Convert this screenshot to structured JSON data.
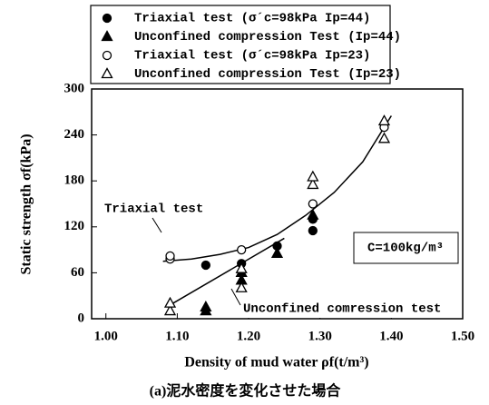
{
  "chart_data": {
    "type": "scatter",
    "xlabel": "Density of mud water ρf(t/m³)",
    "ylabel": "Static strength σf(kPa)",
    "caption": "(a)泥水密度を変化させた場合",
    "box_note": "C=100kg/m³",
    "xlim": [
      0.98,
      1.5
    ],
    "ylim": [
      0,
      300
    ],
    "xticks": [
      {
        "value": 1.0,
        "label": "1.00"
      },
      {
        "value": 1.1,
        "label": "1.10"
      },
      {
        "value": 1.2,
        "label": "1.20"
      },
      {
        "value": 1.3,
        "label": "1.30"
      },
      {
        "value": 1.4,
        "label": "1.40"
      },
      {
        "value": 1.5,
        "label": "1.50"
      }
    ],
    "yticks": [
      0,
      60,
      120,
      180,
      240,
      300
    ],
    "series": [
      {
        "name": "Triaxial test (σ´c=98kPa Ip=44)",
        "marker": "circle",
        "filled": true,
        "color": "#000000",
        "x": [
          1.14,
          1.19,
          1.24,
          1.29,
          1.29
        ],
        "values": [
          70,
          72,
          95,
          115,
          130
        ]
      },
      {
        "name": "Unconfined compression Test (Ip=44)",
        "marker": "triangle",
        "filled": true,
        "color": "#000000",
        "x": [
          1.14,
          1.14,
          1.19,
          1.19,
          1.24,
          1.29
        ],
        "values": [
          10,
          15,
          50,
          60,
          85,
          135
        ]
      },
      {
        "name": "Triaxial test (σ´c=98kPa Ip=23)",
        "marker": "circle",
        "filled": false,
        "color": "#000000",
        "x": [
          1.09,
          1.09,
          1.19,
          1.29,
          1.39
        ],
        "values": [
          78,
          82,
          90,
          150,
          250
        ]
      },
      {
        "name": "Unconfined compression Test (Ip=23)",
        "marker": "triangle",
        "filled": false,
        "color": "#000000",
        "x": [
          1.09,
          1.09,
          1.19,
          1.19,
          1.29,
          1.29,
          1.39,
          1.39
        ],
        "values": [
          10,
          20,
          40,
          65,
          175,
          185,
          235,
          258
        ]
      }
    ],
    "curves": [
      {
        "label": "Triaxial test",
        "x": [
          1.08,
          1.12,
          1.16,
          1.2,
          1.24,
          1.28,
          1.32,
          1.36,
          1.4
        ],
        "values": [
          75,
          78,
          84,
          93,
          110,
          135,
          165,
          205,
          265
        ]
      },
      {
        "label": "Unconfined comression test",
        "x": [
          1.09,
          1.25
        ],
        "values": [
          18,
          105
        ]
      }
    ]
  }
}
